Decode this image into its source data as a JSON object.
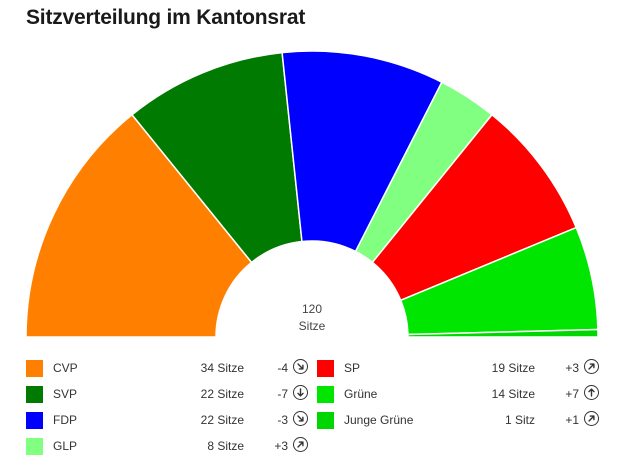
{
  "title": "Sitzverteilung im Kantonsrat",
  "chart_data": {
    "type": "pie",
    "variant": "half-donut",
    "title": "Sitzverteilung im Kantonsrat",
    "total": {
      "value": "120",
      "label": "Sitze"
    },
    "seat_unit": "Sitze",
    "seat_unit_singular": "Sitz",
    "series": [
      {
        "name": "CVP",
        "seats": 34,
        "change": -4,
        "trend": "down-right",
        "color": "#ff8000"
      },
      {
        "name": "SVP",
        "seats": 22,
        "change": -7,
        "trend": "down",
        "color": "#007a00"
      },
      {
        "name": "FDP",
        "seats": 22,
        "change": -3,
        "trend": "down-right",
        "color": "#0000ff"
      },
      {
        "name": "GLP",
        "seats": 8,
        "change": 3,
        "trend": "up-right",
        "color": "#80ff80"
      },
      {
        "name": "SP",
        "seats": 19,
        "change": 3,
        "trend": "up-right",
        "color": "#ff0000"
      },
      {
        "name": "Grüne",
        "seats": 14,
        "change": 7,
        "trend": "up",
        "color": "#00e600"
      },
      {
        "name": "Junge Grüne",
        "seats": 1,
        "change": 1,
        "trend": "up-right",
        "color": "#00d600"
      }
    ],
    "legend_position": "bottom"
  }
}
